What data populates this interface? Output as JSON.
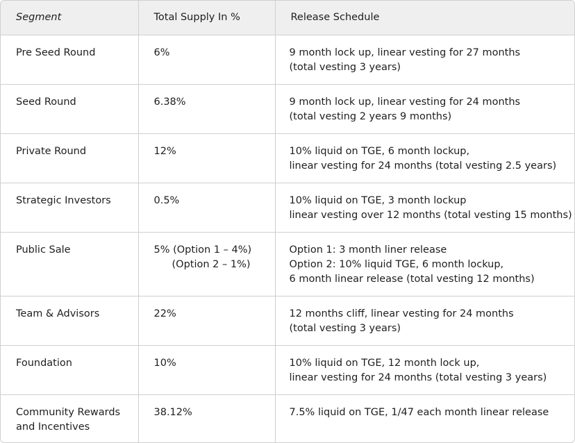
{
  "headers": {
    "segment": "Segment",
    "supply": "Total Supply In %",
    "schedule": "Release Schedule"
  },
  "rows": [
    {
      "segment": [
        "Pre Seed Round"
      ],
      "supply": [
        "6%"
      ],
      "schedule": [
        "9 month lock up, linear vesting for 27 months",
        "(total vesting 3 years)"
      ]
    },
    {
      "segment": [
        "Seed Round"
      ],
      "supply": [
        "6.38%"
      ],
      "schedule": [
        "9 month lock up, linear vesting for 24 months",
        "(total vesting 2 years 9 months)"
      ]
    },
    {
      "segment": [
        "Private Round"
      ],
      "supply": [
        "12%"
      ],
      "schedule": [
        "10% liquid on TGE, 6 month lockup,",
        "linear vesting for 24 months (total vesting 2.5 years)"
      ]
    },
    {
      "segment": [
        "Strategic Investors"
      ],
      "supply": [
        "0.5%"
      ],
      "schedule": [
        "10% liquid on TGE, 3 month lockup",
        "linear vesting over 12 months (total vesting 15 months)"
      ]
    },
    {
      "segment": [
        "Public Sale"
      ],
      "supply": [
        "5% (Option 1 – 4%)",
        "(Option 2 – 1%)"
      ],
      "schedule": [
        "Option 1: 3 month liner release",
        "Option 2: 10% liquid TGE, 6 month lockup,",
        "6 month linear release (total vesting 12 months)"
      ]
    },
    {
      "segment": [
        "Team & Advisors"
      ],
      "supply": [
        "22%"
      ],
      "schedule": [
        "12 months cliff, linear vesting for 24 months",
        "(total vesting 3 years)"
      ]
    },
    {
      "segment": [
        "Foundation"
      ],
      "supply": [
        "10%"
      ],
      "schedule": [
        "10% liquid on TGE, 12 month lock up,",
        "linear vesting for 24 months (total vesting 3 years)"
      ]
    },
    {
      "segment": [
        "Community Rewards",
        "and Incentives"
      ],
      "supply": [
        "38.12%"
      ],
      "schedule": [
        "7.5% liquid on TGE, 1/47 each month linear release"
      ]
    }
  ],
  "colors": {
    "header_bg": "#efefef",
    "border": "#cfcfcf",
    "text": "#1e1e1e"
  }
}
